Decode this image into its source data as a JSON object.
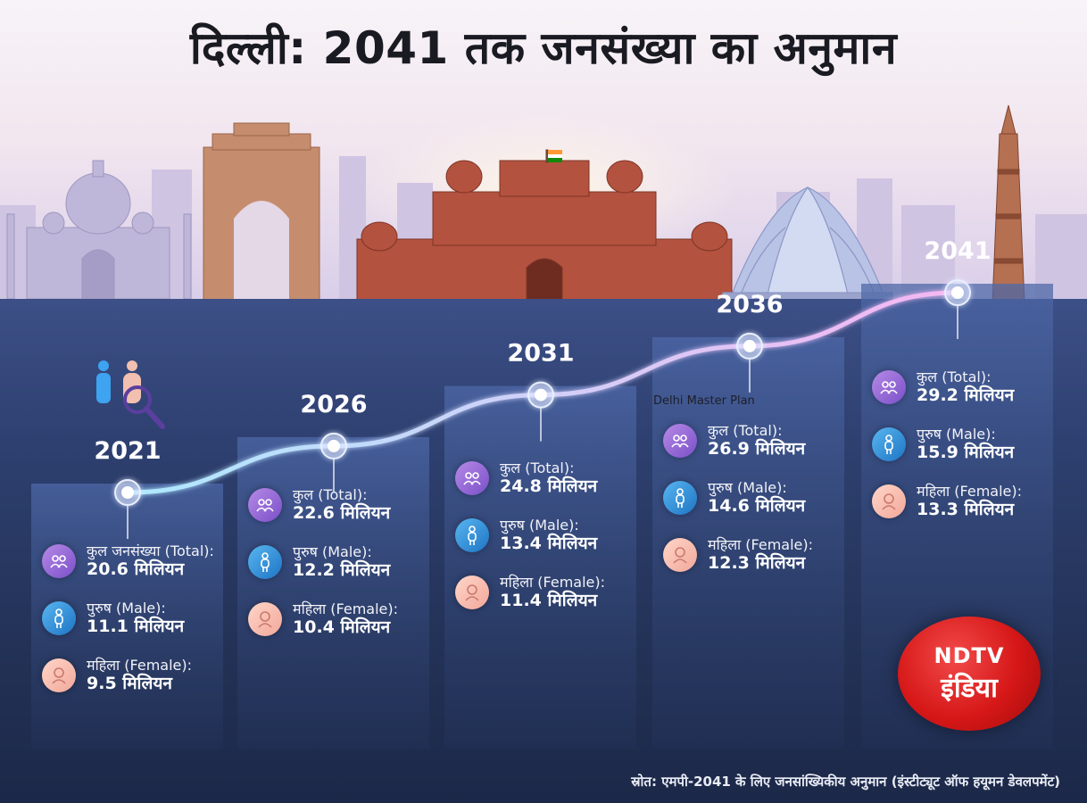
{
  "title": "दिल्ली: 2041 तक जनसंख्या का अनुमान",
  "annotation": "Delhi Master Plan",
  "source": "स्रोत: एमपी-2041 के लिए जनसांख्यिकीय अनुमान (इंस्टीट्यूट ऑफ हयूमन डेवलपमेंट)",
  "logo": {
    "top": "NDTV",
    "bottom": "इंडिया"
  },
  "colors": {
    "total": "#8e63d6",
    "male": "#2f8ed8",
    "female": "#f4b8aa",
    "line": "#c9b8f2",
    "logo": "#d61717"
  },
  "icons": {
    "total": "group-icon",
    "male": "male-person-icon",
    "female": "female-person-icon",
    "hero": "population-search-icon"
  },
  "chart_data": {
    "type": "line",
    "title": "दिल्ली: 2041 तक जनसंख्या का अनुमान",
    "units": "मिलियन",
    "x": [
      2021,
      2026,
      2031,
      2036,
      2041
    ],
    "series": [
      {
        "name": "कुल (Total)",
        "values": [
          20.6,
          22.6,
          24.8,
          26.9,
          29.2
        ]
      },
      {
        "name": "पुरुष (Male)",
        "values": [
          11.1,
          12.2,
          13.4,
          14.6,
          15.9
        ]
      },
      {
        "name": "महिला (Female)",
        "values": [
          9.5,
          10.4,
          11.4,
          12.3,
          13.3
        ]
      }
    ],
    "points": [
      {
        "year": "2021",
        "total_label": "कुल जनसंख्या (Total):",
        "total": "20.6 मिलियन",
        "male_label": "पुरुष (Male):",
        "male": "11.1 मिलियन",
        "female_label": "महिला (Female):",
        "female": "9.5 मिलियन"
      },
      {
        "year": "2026",
        "total_label": "कुल (Total):",
        "total": "22.6 मिलियन",
        "male_label": "पुरुष (Male):",
        "male": "12.2 मिलियन",
        "female_label": "महिला (Female):",
        "female": "10.4 मिलियन"
      },
      {
        "year": "2031",
        "total_label": "कुल (Total):",
        "total": "24.8 मिलियन",
        "male_label": "पुरुष (Male):",
        "male": "13.4 मिलियन",
        "female_label": "महिला (Female):",
        "female": "11.4 मिलियन"
      },
      {
        "year": "2036",
        "total_label": "कुल (Total):",
        "total": "26.9 मिलियन",
        "male_label": "पुरुष (Male):",
        "male": "14.6 मिलियन",
        "female_label": "महिला (Female):",
        "female": "12.3 मिलियन"
      },
      {
        "year": "2041",
        "total_label": "कुल (Total):",
        "total": "29.2 मिलियन",
        "male_label": "पुरुष (Male):",
        "male": "15.9 मिलियन",
        "female_label": "महिला (Female):",
        "female": "13.3 मिलियन"
      }
    ]
  }
}
